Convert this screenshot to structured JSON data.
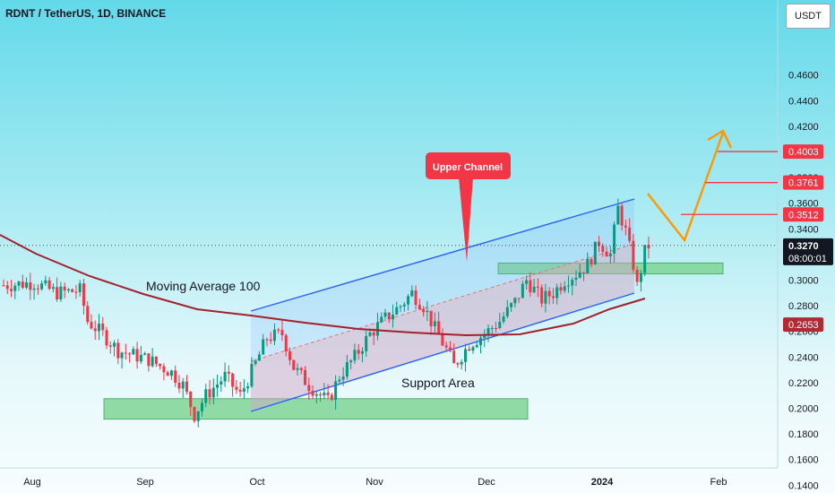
{
  "header": {
    "title": "RDNT / TetherUS, 1D, BINANCE",
    "currency": "USDT"
  },
  "chart_data": {
    "type": "candlestick",
    "y_ticks": [
      "0.4600",
      "0.4400",
      "0.4200",
      "0.4000",
      "0.3800",
      "0.3600",
      "0.3400",
      "0.3000",
      "0.2800",
      "0.2600",
      "0.2400",
      "0.2200",
      "0.2000",
      "0.1800",
      "0.1600",
      "0.1400"
    ],
    "x_ticks": [
      "Aug",
      "Sep",
      "Oct",
      "Nov",
      "Dec",
      "2024",
      "Feb"
    ],
    "ylim": [
      0.13,
      0.475
    ],
    "price_labels": [
      {
        "value": "0.4003",
        "color": "#f23645"
      },
      {
        "value": "0.3761",
        "color": "#f23645"
      },
      {
        "value": "0.3512",
        "color": "#f23645"
      },
      {
        "value": "0.2653",
        "color": "#b22833"
      }
    ],
    "current_price": {
      "value": "0.3270",
      "countdown": "08:00:01"
    },
    "annotations": {
      "moving_average": "Moving Average 100",
      "upper_channel": "Upper Channel",
      "support_area": "Support Area"
    },
    "colors": {
      "up": "#089981",
      "down": "#f23645",
      "ma": "#a3212d",
      "channel": "#2962ff",
      "arrow": "#ff9800",
      "zone": "#79d38f"
    }
  }
}
